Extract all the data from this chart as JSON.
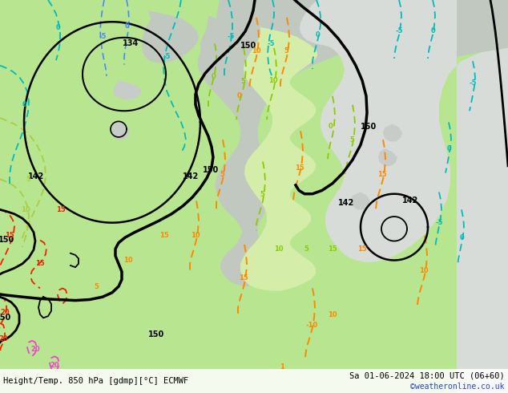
{
  "title_left": "Height/Temp. 850 hPa [gdmp][°C] ECMWF",
  "title_right": "Sa 01-06-2024 18:00 UTC (06+60)",
  "credit": "©weatheronline.co.uk",
  "bg_color": "#c8c8c8",
  "land_green": "#b8e690",
  "land_light": "#d4eeaa",
  "sea_gray": "#c0c8c0",
  "sea_light": "#d8dcd8",
  "contour_black": "#000000",
  "contour_cyan": "#00bbbb",
  "contour_blue": "#4488ff",
  "contour_green": "#88cc00",
  "contour_lgreen": "#aacc44",
  "contour_orange": "#ff8800",
  "contour_red": "#ee2200",
  "contour_pink": "#ee44cc",
  "fig_width": 6.34,
  "fig_height": 4.9,
  "dpi": 100
}
